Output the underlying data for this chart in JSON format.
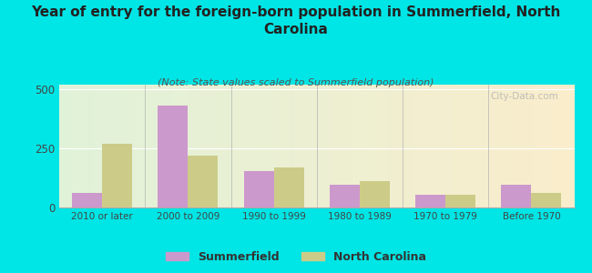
{
  "title": "Year of entry for the foreign-born population in Summerfield, North\nCarolina",
  "subtitle": "(Note: State values scaled to Summerfield population)",
  "categories": [
    "2010 or later",
    "2000 to 2009",
    "1990 to 1999",
    "1980 to 1989",
    "1970 to 1979",
    "Before 1970"
  ],
  "summerfield_values": [
    60,
    430,
    155,
    95,
    55,
    95
  ],
  "nc_values": [
    270,
    220,
    170,
    110,
    55,
    60
  ],
  "summerfield_color": "#cc99cc",
  "nc_color": "#cccc88",
  "ylim": [
    0,
    520
  ],
  "yticks": [
    0,
    250,
    500
  ],
  "bar_width": 0.35,
  "outer_bg": "#00e5e5",
  "legend_labels": [
    "Summerfield",
    "North Carolina"
  ],
  "watermark": "City-Data.com",
  "title_fontsize": 11,
  "subtitle_fontsize": 8
}
